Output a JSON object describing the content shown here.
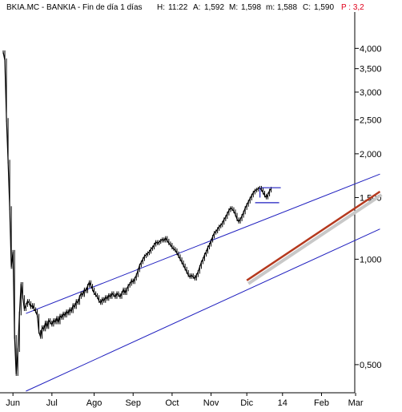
{
  "header": {
    "title": "BKIA.MC - BANKIA - Fin de día 1 días",
    "h_label": "H:",
    "h_value": "11:22",
    "a_label": "A:",
    "a_value": "1,592",
    "m_label": "M:",
    "m_value": "1,598",
    "min_label": "m:",
    "min_value": "1,588",
    "c_label": "C:",
    "c_value": "1,590",
    "p_text": "P : 3,2"
  },
  "colors": {
    "price": "#000000",
    "channel": "#1f1fbf",
    "trendline": "#b5391e",
    "marker": "#1f1fbf",
    "p_text": "#e0001b",
    "background": "#ffffff"
  },
  "chart_data": {
    "type": "line",
    "title": "",
    "xlabel": "",
    "ylabel": "",
    "y_scale": "log",
    "ylim": [
      0.42,
      5.0
    ],
    "y_ticks": [
      {
        "value": 0.5,
        "label": "0,500"
      },
      {
        "value": 1.0,
        "label": "1,000"
      },
      {
        "value": 1.5,
        "label": "1,500"
      },
      {
        "value": 2.0,
        "label": "2,000"
      },
      {
        "value": 2.5,
        "label": "2,500"
      },
      {
        "value": 3.0,
        "label": "3,000"
      },
      {
        "value": 3.5,
        "label": "3,500"
      },
      {
        "value": 4.0,
        "label": "4,000"
      }
    ],
    "x_ticks": [
      "Jun",
      "Jul",
      "Ago",
      "Sep",
      "Oct",
      "Nov",
      "Dic",
      "14",
      "Feb",
      "Mar"
    ],
    "x_tick_index": [
      6,
      30,
      56,
      80,
      104,
      128,
      150,
      172,
      196,
      217
    ],
    "series": [
      {
        "values": [
          3.9,
          3.7,
          2.5,
          1.9,
          1.4,
          0.95,
          1.05,
          0.6,
          0.47,
          0.55,
          0.7,
          0.85,
          0.78,
          0.72,
          0.74,
          0.76,
          0.75,
          0.73,
          0.74,
          0.72,
          0.71,
          0.69,
          0.62,
          0.6,
          0.64,
          0.63,
          0.66,
          0.64,
          0.67,
          0.66,
          0.65,
          0.67,
          0.66,
          0.68,
          0.66,
          0.69,
          0.68,
          0.7,
          0.69,
          0.71,
          0.7,
          0.72,
          0.71,
          0.74,
          0.73,
          0.76,
          0.75,
          0.78,
          0.8,
          0.79,
          0.82,
          0.81,
          0.84,
          0.86,
          0.84,
          0.82,
          0.8,
          0.79,
          0.78,
          0.76,
          0.75,
          0.77,
          0.76,
          0.78,
          0.77,
          0.79,
          0.78,
          0.8,
          0.79,
          0.78,
          0.8,
          0.79,
          0.78,
          0.8,
          0.82,
          0.8,
          0.82,
          0.84,
          0.85,
          0.87,
          0.86,
          0.88,
          0.9,
          0.93,
          0.96,
          0.98,
          1.0,
          1.02,
          1.03,
          1.04,
          1.05,
          1.07,
          1.08,
          1.1,
          1.12,
          1.11,
          1.12,
          1.13,
          1.14,
          1.13,
          1.15,
          1.13,
          1.11,
          1.1,
          1.08,
          1.07,
          1.06,
          1.04,
          1.02,
          1.0,
          0.98,
          0.96,
          0.94,
          0.92,
          0.9,
          0.89,
          0.9,
          0.89,
          0.88,
          0.9,
          0.92,
          0.95,
          0.98,
          1.0,
          1.03,
          1.05,
          1.08,
          1.1,
          1.13,
          1.16,
          1.19,
          1.2,
          1.22,
          1.24,
          1.25,
          1.27,
          1.3,
          1.32,
          1.35,
          1.38,
          1.4,
          1.39,
          1.37,
          1.34,
          1.3,
          1.28,
          1.3,
          1.33,
          1.36,
          1.4,
          1.43,
          1.46,
          1.49,
          1.52,
          1.55,
          1.57,
          1.58,
          1.59,
          1.6,
          1.58,
          1.55,
          1.52,
          1.5,
          1.53,
          1.57,
          1.59
        ]
      }
    ],
    "channel": {
      "upper": [
        [
          14,
          0.7
        ],
        [
          232,
          1.75
        ]
      ],
      "lower": [
        [
          14,
          0.42
        ],
        [
          232,
          1.22
        ]
      ],
      "trendline": [
        [
          150,
          0.87
        ],
        [
          232,
          1.56
        ]
      ]
    }
  }
}
